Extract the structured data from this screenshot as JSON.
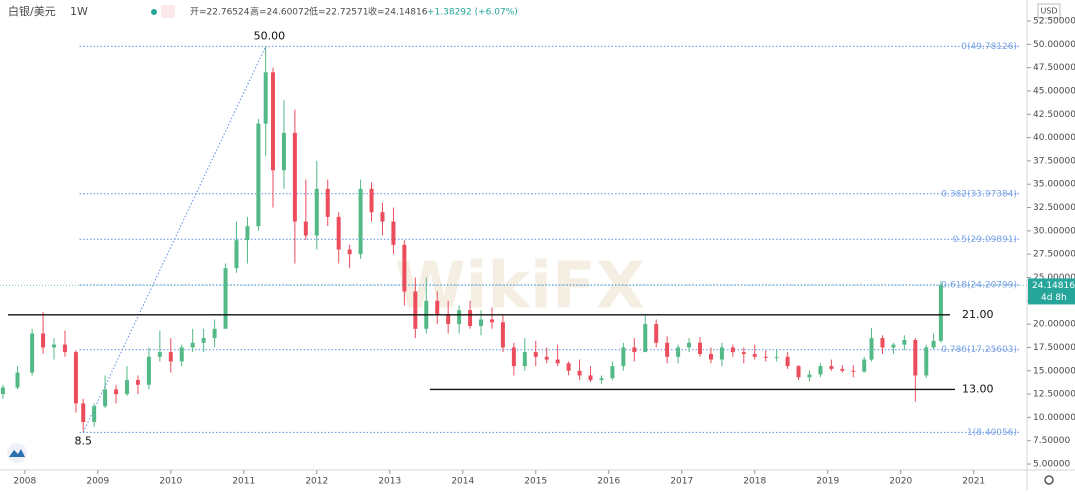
{
  "header": {
    "symbol": "白银/美元",
    "interval": "1W",
    "open": "开=22.76524",
    "high": "高=24.60072",
    "low": "低=22.72571",
    "close": "收=24.14816",
    "change": "+1.38292 (+6.07%)"
  },
  "watermark": "WikiFX",
  "chart_data": {
    "type": "candlestick",
    "currency": "USD",
    "up_color": "#53b987",
    "down_color": "#eb4d5c",
    "x": [
      2007.7,
      2007.9,
      2008.1,
      2008.25,
      2008.4,
      2008.55,
      2008.7,
      2008.8,
      2008.95,
      2009.1,
      2009.25,
      2009.4,
      2009.55,
      2009.7,
      2009.85,
      2010.0,
      2010.15,
      2010.3,
      2010.45,
      2010.6,
      2010.75,
      2010.9,
      2011.05,
      2011.2,
      2011.3,
      2011.4,
      2011.55,
      2011.7,
      2011.85,
      2012.0,
      2012.15,
      2012.3,
      2012.45,
      2012.6,
      2012.75,
      2012.9,
      2013.05,
      2013.2,
      2013.35,
      2013.5,
      2013.65,
      2013.8,
      2013.95,
      2014.1,
      2014.25,
      2014.4,
      2014.55,
      2014.7,
      2014.85,
      2015.0,
      2015.15,
      2015.3,
      2015.45,
      2015.6,
      2015.75,
      2015.9,
      2016.05,
      2016.2,
      2016.35,
      2016.5,
      2016.65,
      2016.8,
      2016.95,
      2017.1,
      2017.25,
      2017.4,
      2017.55,
      2017.7,
      2017.85,
      2018.0,
      2018.15,
      2018.3,
      2018.45,
      2018.6,
      2018.75,
      2018.9,
      2019.05,
      2019.2,
      2019.35,
      2019.5,
      2019.6,
      2019.75,
      2019.9,
      2020.05,
      2020.2,
      2020.35,
      2020.45,
      2020.55
    ],
    "open": [
      12.5,
      13.2,
      14.8,
      19.0,
      17.5,
      17.8,
      17.0,
      11.5,
      9.5,
      11.2,
      13.0,
      12.5,
      14.0,
      13.5,
      16.5,
      17.0,
      16.0,
      17.5,
      18.0,
      18.5,
      19.5,
      26.0,
      29.0,
      30.5,
      41.5,
      47.0,
      36.5,
      40.5,
      31.0,
      29.5,
      34.5,
      31.5,
      28.0,
      27.5,
      34.5,
      32.0,
      31.0,
      28.5,
      23.5,
      19.5,
      22.5,
      21.0,
      20.0,
      21.5,
      19.8,
      20.5,
      20.2,
      17.5,
      15.5,
      17.0,
      16.5,
      16.2,
      15.8,
      15.0,
      14.5,
      14.0,
      14.2,
      15.5,
      17.5,
      17.0,
      20.0,
      18.0,
      16.5,
      17.5,
      18.0,
      16.8,
      16.2,
      17.5,
      17.0,
      16.8,
      16.5,
      16.4,
      16.5,
      15.5,
      14.3,
      14.6,
      15.5,
      15.2,
      15.0,
      14.9,
      16.2,
      18.5,
      17.5,
      17.8,
      18.3,
      14.5,
      17.5,
      18.2
    ],
    "high": [
      13.5,
      15.5,
      19.5,
      21.3,
      18.5,
      19.3,
      17.2,
      12.0,
      11.5,
      14.5,
      13.5,
      15.5,
      14.5,
      17.5,
      19.3,
      18.5,
      17.8,
      19.5,
      19.5,
      20.5,
      26.5,
      31.0,
      31.5,
      42.0,
      49.8,
      47.5,
      44.0,
      43.0,
      35.5,
      37.5,
      35.5,
      32.0,
      28.5,
      35.5,
      35.2,
      33.0,
      32.5,
      29.0,
      25.0,
      25.0,
      23.5,
      22.5,
      22.0,
      22.5,
      21.5,
      21.8,
      21.0,
      18.0,
      18.5,
      18.2,
      17.5,
      17.8,
      16.0,
      16.2,
      15.5,
      14.5,
      16.0,
      18.0,
      18.5,
      21.0,
      20.5,
      18.7,
      17.8,
      18.5,
      18.6,
      17.5,
      18.0,
      17.8,
      17.5,
      17.8,
      17.2,
      17.3,
      17.0,
      15.6,
      15.0,
      15.8,
      16.2,
      15.6,
      15.6,
      16.5,
      19.6,
      18.8,
      18.0,
      18.8,
      18.5,
      17.8,
      19.0,
      24.6
    ],
    "low": [
      12.0,
      13.0,
      14.5,
      16.8,
      16.2,
      16.5,
      10.5,
      8.5,
      9.0,
      11.0,
      11.5,
      12.3,
      12.5,
      13.0,
      16.0,
      14.8,
      15.5,
      17.0,
      17.0,
      17.5,
      19.5,
      25.5,
      26.5,
      30.0,
      38.0,
      32.5,
      34.5,
      26.5,
      29.0,
      28.0,
      30.5,
      26.5,
      26.0,
      27.0,
      31.0,
      29.5,
      27.5,
      22.0,
      18.5,
      19.0,
      20.0,
      19.0,
      19.0,
      19.5,
      18.8,
      19.5,
      17.0,
      14.5,
      15.0,
      15.5,
      15.8,
      15.5,
      14.5,
      14.0,
      13.8,
      13.6,
      14.0,
      15.0,
      16.0,
      17.0,
      17.5,
      15.8,
      15.8,
      17.0,
      16.5,
      15.8,
      15.5,
      16.5,
      15.8,
      16.2,
      16.0,
      16.0,
      15.2,
      14.0,
      13.9,
      14.3,
      15.0,
      14.8,
      14.3,
      14.8,
      16.0,
      16.8,
      16.8,
      17.2,
      11.7,
      14.2,
      17.3,
      18.0
    ],
    "close": [
      13.2,
      14.8,
      19.0,
      17.5,
      17.8,
      17.0,
      11.5,
      9.5,
      11.2,
      13.0,
      12.5,
      14.0,
      13.5,
      16.5,
      17.0,
      16.0,
      17.5,
      18.0,
      18.5,
      19.5,
      26.0,
      29.0,
      30.5,
      41.5,
      47.0,
      36.5,
      40.5,
      31.0,
      29.5,
      34.5,
      31.5,
      28.0,
      27.5,
      34.5,
      32.0,
      31.0,
      28.5,
      23.5,
      19.5,
      22.5,
      21.0,
      20.0,
      21.5,
      19.8,
      20.5,
      20.2,
      17.5,
      15.5,
      17.0,
      16.5,
      16.2,
      15.8,
      15.0,
      14.5,
      14.0,
      14.2,
      15.5,
      17.5,
      17.0,
      20.0,
      18.0,
      16.5,
      17.5,
      18.0,
      16.8,
      16.2,
      17.5,
      17.0,
      16.8,
      16.5,
      16.4,
      16.5,
      15.5,
      14.3,
      14.6,
      15.5,
      15.2,
      15.0,
      14.9,
      16.2,
      18.5,
      17.5,
      17.8,
      18.3,
      14.5,
      17.5,
      18.2,
      24.15
    ],
    "xlim": [
      2007.66,
      2021.73
    ],
    "xticks": [
      2008,
      2009,
      2010,
      2011,
      2012,
      2013,
      2014,
      2015,
      2016,
      2017,
      2018,
      2019,
      2020,
      2021
    ],
    "ylim": [
      4.36,
      54.75
    ],
    "yticks": [
      {
        "value": 5,
        "label": "5.00000"
      },
      {
        "value": 7.5,
        "label": "7.50000"
      },
      {
        "value": 10,
        "label": "10.00000"
      },
      {
        "value": 12.5,
        "label": "12.50000"
      },
      {
        "value": 15,
        "label": "15.00000"
      },
      {
        "value": 17.5,
        "label": "17.50000"
      },
      {
        "value": 20,
        "label": "20.00000"
      },
      {
        "value": 22.5,
        "label": "22.50000"
      },
      {
        "value": 25,
        "label": "25.00000"
      },
      {
        "value": 27.5,
        "label": "27.50000"
      },
      {
        "value": 30,
        "label": "30.00000"
      },
      {
        "value": 32.5,
        "label": "32.50000"
      },
      {
        "value": 35,
        "label": "35.00000"
      },
      {
        "value": 37.5,
        "label": "37.50000"
      },
      {
        "value": 40,
        "label": "40.00000"
      },
      {
        "value": 42.5,
        "label": "42.50000"
      },
      {
        "value": 45,
        "label": "45.00000"
      },
      {
        "value": 47.5,
        "label": "47.50000"
      },
      {
        "value": 50,
        "label": "50.00000"
      },
      {
        "value": 52.5,
        "label": "52.50000"
      }
    ],
    "fib_levels": [
      {
        "value": 49.78126,
        "label": "0(49.78126)"
      },
      {
        "value": 33.97384,
        "label": "0.382(33.97384)"
      },
      {
        "value": 29.09891,
        "label": "0.5(29.09891)"
      },
      {
        "value": 24.20799,
        "label": "0.618(24.20799)"
      },
      {
        "value": 17.25603,
        "label": "0.786(17.25603)"
      },
      {
        "value": 8.40056,
        "label": "1(8.40056)"
      }
    ],
    "levels": [
      {
        "value": 21,
        "label": "21.00"
      },
      {
        "value": 13,
        "label": "13.00"
      }
    ],
    "annotations": [
      {
        "value": 50,
        "label": "50.00"
      },
      {
        "value": 8.5,
        "label": "8.5"
      }
    ],
    "last_price": 24.14816,
    "countdown": "4d 8h"
  }
}
